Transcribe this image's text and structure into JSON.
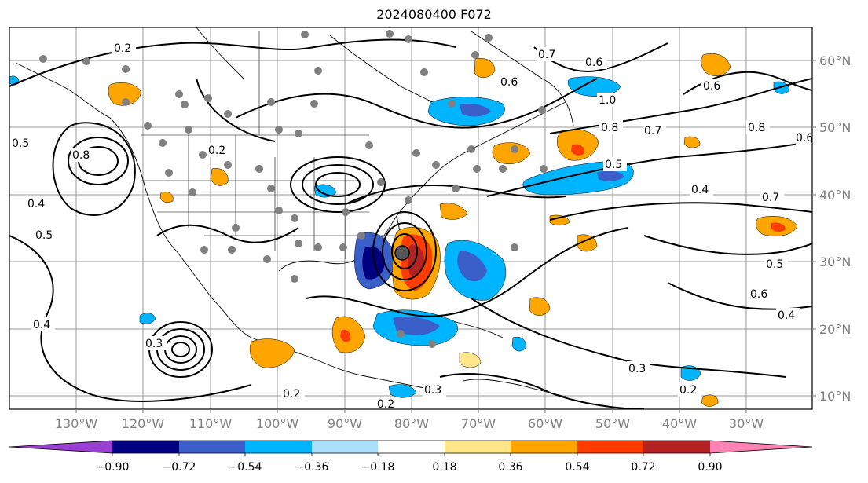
{
  "title": "2024080400 F072",
  "map": {
    "longitude_labels": [
      "130°W",
      "120°W",
      "110°W",
      "100°W",
      "90°W",
      "80°W",
      "70°W",
      "60°W",
      "50°W",
      "40°W",
      "30°W"
    ],
    "latitude_labels": [
      "60°N",
      "50°N",
      "40°N",
      "30°N",
      "20°N",
      "10°N"
    ]
  },
  "contour_labels": [
    "0.2",
    "0.2",
    "0.2",
    "0.2",
    "0.2",
    "0.3",
    "0.3",
    "0.3",
    "0.4",
    "0.4",
    "0.4",
    "0.4",
    "0.5",
    "0.5",
    "0.5",
    "0.5",
    "0.6",
    "0.6",
    "0.6",
    "0.6",
    "0.6",
    "0.7",
    "0.7",
    "0.7",
    "0.8",
    "0.8",
    "0.8",
    "1.0"
  ],
  "colorbar": {
    "ticks": [
      "−0.90",
      "−0.72",
      "−0.54",
      "−0.36",
      "−0.18",
      "0.18",
      "0.36",
      "0.54",
      "0.72",
      "0.90"
    ],
    "colors": [
      "#9a3fd4",
      "#000080",
      "#3b5fc8",
      "#00b5ff",
      "#aadfff",
      "#ffffff",
      "#ffe68a",
      "#ffa500",
      "#ff3c00",
      "#b22222",
      "#ff82b4"
    ]
  }
}
